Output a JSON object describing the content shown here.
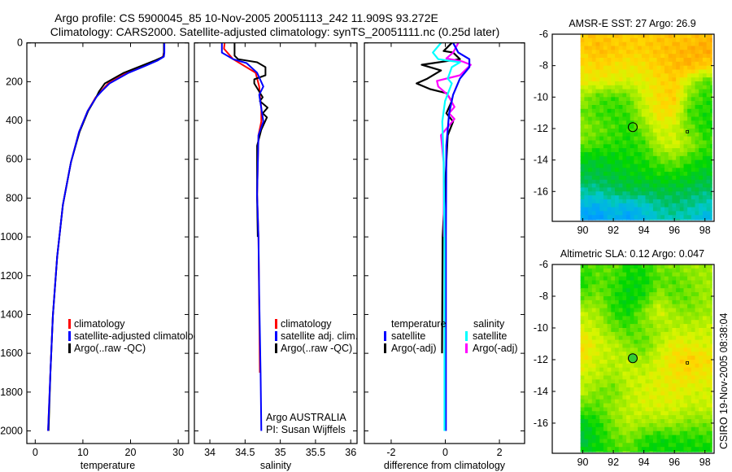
{
  "figure": {
    "title_line1": "Argo profile: CS 5900045_85 10-Nov-2005 20051113_242 11.909S 93.272E",
    "title_line2": "Climatology: CARS2000. Satellite-adjusted climatology: synTS_20051111.nc (0.25d later)",
    "footer_stamp": "CSIRO 19-Nov-2005 08:38:04",
    "credit_line1": "Argo AUSTRALIA",
    "credit_line2": "PI: Susan Wijffels"
  },
  "colors": {
    "red": "#ff0000",
    "blue": "#0000ff",
    "black": "#000000",
    "cyan": "#00ffff",
    "magenta": "#ff00ff"
  },
  "chart_data": [
    {
      "type": "line",
      "xlabel": "temperature",
      "ylabel": "",
      "xlim": [
        -1.76,
        32.2
      ],
      "ylim": [
        0,
        2065
      ],
      "y_reversed": true,
      "xticks": [
        "0",
        "10",
        "20",
        "30"
      ],
      "xtick_values": [
        0,
        10,
        20,
        30
      ],
      "yticks": [
        "0",
        "200",
        "400",
        "600",
        "800",
        "1000",
        "1200",
        "1400",
        "1600",
        "1800",
        "2000"
      ],
      "ytick_values": [
        0,
        200,
        400,
        600,
        800,
        1000,
        1200,
        1400,
        1600,
        1800,
        2000
      ],
      "legend": [
        "climatology",
        "satellite-adjusted climatology",
        "Argo(..raw -QC)"
      ],
      "series": [
        {
          "name": "climatology",
          "color": "#ff0000",
          "depth": [
            0,
            50,
            71,
            92,
            121,
            154,
            209,
            250,
            280,
            351,
            459,
            614,
            835,
            1102,
            1407,
            1687,
            2000
          ],
          "values": [
            27.0,
            27.0,
            26.8,
            25.4,
            22.7,
            19.3,
            15.3,
            13.8,
            12.7,
            11.0,
            9.2,
            7.5,
            5.8,
            4.6,
            3.7,
            3.2,
            2.7
          ]
        },
        {
          "name": "Argo(..raw -QC)",
          "color": "#000000",
          "depth": [
            0,
            50,
            71,
            92,
            121,
            154,
            209,
            250,
            280,
            351,
            459,
            614,
            835,
            1102,
            1407,
            1687,
            2000
          ],
          "values": [
            27.0,
            27.0,
            26.9,
            25.0,
            22.0,
            18.6,
            14.6,
            13.4,
            12.8,
            11.1,
            9.3,
            7.5,
            5.8,
            4.6,
            3.7,
            3.2,
            2.8
          ]
        },
        {
          "name": "satellite-adjusted climatology",
          "color": "#0000ff",
          "depth": [
            0,
            50,
            71,
            92,
            121,
            154,
            209,
            250,
            280,
            351,
            459,
            614,
            835,
            1102,
            1407,
            1687,
            2000
          ],
          "values": [
            27.1,
            27.1,
            27.0,
            25.6,
            22.9,
            19.6,
            15.6,
            13.9,
            12.8,
            11.0,
            9.2,
            7.5,
            5.8,
            4.6,
            3.7,
            3.2,
            2.7
          ]
        }
      ]
    },
    {
      "type": "line",
      "xlabel": "salinity",
      "xlim": [
        33.78,
        36.09
      ],
      "ylim": [
        0,
        2065
      ],
      "y_reversed": true,
      "xticks": [
        "34",
        "34.5",
        "35",
        "35.5",
        "36"
      ],
      "xtick_values": [
        34,
        34.5,
        35,
        35.5,
        36
      ],
      "ytick_values": [
        0,
        200,
        400,
        600,
        800,
        1000,
        1200,
        1400,
        1600,
        1800,
        2000
      ],
      "legend": [
        "climatology",
        "satellite adj. clim.",
        "Argo(..raw -QC)"
      ],
      "series": [
        {
          "name": "climatology",
          "color": "#ff0000",
          "depth": [
            0,
            30,
            84,
            154,
            225,
            267,
            337,
            405,
            476,
            781,
            1000,
            1700
          ],
          "values": [
            34.21,
            34.2,
            34.33,
            34.65,
            34.7,
            34.71,
            34.73,
            34.73,
            34.69,
            34.67,
            34.69,
            34.71
          ]
        },
        {
          "name": "Argo(..raw -QC)",
          "color": "#000000",
          "depth": [
            0,
            66,
            84,
            100,
            125,
            167,
            188,
            209,
            280,
            300,
            334,
            363,
            384,
            447,
            530,
            800,
            1000
          ],
          "values": [
            34.35,
            34.35,
            34.4,
            34.67,
            34.79,
            34.79,
            34.63,
            34.63,
            34.75,
            34.71,
            34.82,
            34.75,
            34.81,
            34.73,
            34.67,
            34.67,
            34.68
          ]
        },
        {
          "name": "satellite adj. clim.",
          "color": "#0000ff",
          "depth": [
            0,
            50,
            84,
            104,
            154,
            225,
            267,
            405,
            476,
            781,
            1000,
            1300,
            1700,
            2000
          ],
          "values": [
            34.17,
            34.17,
            34.33,
            34.52,
            34.67,
            34.76,
            34.7,
            34.76,
            34.69,
            34.67,
            34.69,
            34.7,
            34.72,
            34.73
          ]
        }
      ]
    },
    {
      "type": "line",
      "xlabel": "difference from climatology",
      "xlim": [
        -2.99,
        2.93
      ],
      "ylim": [
        0,
        2065
      ],
      "y_reversed": true,
      "xticks": [
        "-2",
        "0",
        "2"
      ],
      "xtick_values": [
        -2,
        0,
        2
      ],
      "ytick_values": [
        0,
        200,
        400,
        600,
        800,
        1000,
        1200,
        1400,
        1600,
        1800,
        2000
      ],
      "legend_headers": [
        "temperature",
        "salinity"
      ],
      "legend": [
        "satellite",
        "Argo(-adj)",
        "satellite",
        "Argo(-adj)"
      ],
      "series": [
        {
          "name": "temperature Argo(-adj)",
          "color": "#000000",
          "depth": [
            0,
            42,
            50,
            84,
            113,
            142,
            184,
            209,
            238,
            259,
            300,
            363,
            405,
            476,
            614,
            1000,
            1600
          ],
          "values": [
            0.24,
            -0.06,
            0.29,
            0.54,
            -0.87,
            -0.16,
            -0.66,
            -1.06,
            -0.57,
            0.04,
            0.24,
            0.04,
            0.29,
            0.09,
            0.04,
            -0.1,
            -0.12
          ]
        },
        {
          "name": "salinity Argo(-adj)",
          "color": "#ff00ff",
          "depth": [
            0,
            50,
            80,
            96,
            113,
            167,
            196,
            225,
            267,
            330,
            363,
            392,
            476,
            614,
            1000
          ],
          "values": [
            0.48,
            0.29,
            0.04,
            0.64,
            0.94,
            0.54,
            -0.31,
            -0.26,
            0.09,
            0.34,
            0.14,
            0.34,
            -0.16,
            -0.06,
            -0.05
          ]
        },
        {
          "name": "temperature satellite",
          "color": "#0000ff",
          "depth": [
            0,
            50,
            84,
            125,
            184,
            267,
            363,
            530,
            1000,
            2000
          ],
          "values": [
            0.29,
            0.48,
            0.89,
            0.89,
            0.54,
            0.29,
            0.14,
            0.04,
            0.02,
            0.02
          ]
        },
        {
          "name": "salinity satellite",
          "color": "#00ffff",
          "depth": [
            0,
            50,
            84,
            100,
            125,
            184,
            209,
            300,
            405,
            614,
            1000,
            2000
          ],
          "values": [
            -0.16,
            -0.46,
            -0.26,
            0.54,
            0.24,
            0.09,
            0.24,
            -0.01,
            -0.11,
            -0.06,
            -0.03,
            -0.03
          ]
        }
      ]
    },
    {
      "type": "heatmap",
      "title": "AMSR-E SST: 27 Argo: 26.9",
      "xlim": [
        88.0,
        98.6
      ],
      "ylim": [
        -6,
        -17.9
      ],
      "xticks": [
        "90",
        "92",
        "94",
        "96",
        "98"
      ],
      "xtick_values": [
        90,
        92,
        94,
        96,
        98
      ],
      "yticks": [
        "-6",
        "-8",
        "-10",
        "-12",
        "-14",
        "-16"
      ],
      "ytick_values": [
        -6,
        -8,
        -10,
        -12,
        -14,
        -16
      ],
      "grid_lon": [
        90,
        91,
        92,
        93,
        94,
        95,
        96,
        97,
        98
      ],
      "grid_lat": [
        -6,
        -7,
        -8,
        -9,
        -10,
        -11,
        -12,
        -13,
        -14,
        -15,
        -16,
        -17,
        -17.8
      ],
      "data_extent": {
        "lon": [
          89.85,
          98.45
        ],
        "lat": [
          -6,
          -17.8
        ]
      },
      "values_normalized": [
        [
          0.7,
          0.71,
          0.7,
          0.7,
          0.7,
          0.71,
          0.71,
          0.7,
          0.72
        ],
        [
          0.7,
          0.72,
          0.71,
          0.7,
          0.7,
          0.71,
          0.72,
          0.73,
          0.74
        ],
        [
          0.68,
          0.69,
          0.68,
          0.67,
          0.68,
          0.7,
          0.72,
          0.73,
          0.7
        ],
        [
          0.66,
          0.66,
          0.65,
          0.64,
          0.65,
          0.68,
          0.7,
          0.62,
          0.56
        ],
        [
          0.6,
          0.56,
          0.55,
          0.57,
          0.64,
          0.68,
          0.7,
          0.58,
          0.54
        ],
        [
          0.57,
          0.55,
          0.54,
          0.55,
          0.62,
          0.68,
          0.67,
          0.55,
          0.53
        ],
        [
          0.59,
          0.57,
          0.55,
          0.53,
          0.58,
          0.64,
          0.63,
          0.57,
          0.53
        ],
        [
          0.57,
          0.55,
          0.54,
          0.53,
          0.55,
          0.62,
          0.64,
          0.6,
          0.55
        ],
        [
          0.5,
          0.5,
          0.51,
          0.52,
          0.53,
          0.56,
          0.58,
          0.54,
          0.52
        ],
        [
          0.48,
          0.48,
          0.49,
          0.5,
          0.51,
          0.52,
          0.52,
          0.51,
          0.49
        ],
        [
          0.44,
          0.44,
          0.46,
          0.48,
          0.47,
          0.48,
          0.48,
          0.47,
          0.46
        ],
        [
          0.38,
          0.37,
          0.4,
          0.38,
          0.41,
          0.44,
          0.45,
          0.44,
          0.42
        ],
        [
          0.35,
          0.34,
          0.38,
          0.35,
          0.39,
          0.42,
          0.43,
          0.42,
          0.38
        ]
      ],
      "argo_position": {
        "lon": 93.272,
        "lat": -11.909,
        "filled": false
      },
      "extra_point": {
        "lon": 96.85,
        "lat": -12.2
      }
    },
    {
      "type": "heatmap",
      "title": "Altimetric SLA: 0.12 Argo: 0.047",
      "xlim": [
        88.0,
        98.6
      ],
      "ylim": [
        -6,
        -17.9
      ],
      "xticks": [
        "90",
        "92",
        "94",
        "96",
        "98"
      ],
      "xtick_values": [
        90,
        92,
        94,
        96,
        98
      ],
      "yticks": [
        "-6",
        "-8",
        "-10",
        "-12",
        "-14",
        "-16"
      ],
      "ytick_values": [
        -6,
        -8,
        -10,
        -12,
        -14,
        -16
      ],
      "grid_lon": [
        90,
        91,
        92,
        93,
        94,
        95,
        96,
        97,
        98
      ],
      "grid_lat": [
        -6,
        -7,
        -8,
        -9,
        -10,
        -11,
        -12,
        -13,
        -14,
        -15,
        -16,
        -17,
        -17.8
      ],
      "data_extent": {
        "lon": [
          89.85,
          98.45
        ],
        "lat": [
          -6,
          -17.8
        ]
      },
      "values_normalized": [
        [
          0.55,
          0.56,
          0.57,
          0.53,
          0.53,
          0.58,
          0.58,
          0.6,
          0.6
        ],
        [
          0.53,
          0.56,
          0.55,
          0.52,
          0.52,
          0.56,
          0.56,
          0.58,
          0.6
        ],
        [
          0.56,
          0.58,
          0.54,
          0.51,
          0.53,
          0.6,
          0.56,
          0.57,
          0.6
        ],
        [
          0.62,
          0.6,
          0.54,
          0.52,
          0.58,
          0.64,
          0.6,
          0.58,
          0.6
        ],
        [
          0.64,
          0.62,
          0.57,
          0.55,
          0.58,
          0.6,
          0.62,
          0.62,
          0.63
        ],
        [
          0.68,
          0.64,
          0.62,
          0.58,
          0.56,
          0.62,
          0.66,
          0.65,
          0.64
        ],
        [
          0.67,
          0.63,
          0.62,
          0.62,
          0.6,
          0.64,
          0.68,
          0.7,
          0.68
        ],
        [
          0.63,
          0.62,
          0.6,
          0.63,
          0.63,
          0.65,
          0.67,
          0.68,
          0.66
        ],
        [
          0.62,
          0.58,
          0.57,
          0.62,
          0.64,
          0.65,
          0.66,
          0.64,
          0.64
        ],
        [
          0.56,
          0.56,
          0.6,
          0.62,
          0.64,
          0.64,
          0.64,
          0.62,
          0.63
        ],
        [
          0.5,
          0.53,
          0.58,
          0.62,
          0.6,
          0.6,
          0.6,
          0.58,
          0.58
        ],
        [
          0.48,
          0.52,
          0.56,
          0.58,
          0.54,
          0.52,
          0.53,
          0.53,
          0.54
        ],
        [
          0.5,
          0.52,
          0.54,
          0.56,
          0.52,
          0.52,
          0.52,
          0.52,
          0.52
        ]
      ],
      "argo_position": {
        "lon": 93.272,
        "lat": -11.909,
        "filled": true,
        "fill": "#33cc33"
      },
      "extra_point": {
        "lon": 96.85,
        "lat": -12.2
      }
    }
  ]
}
